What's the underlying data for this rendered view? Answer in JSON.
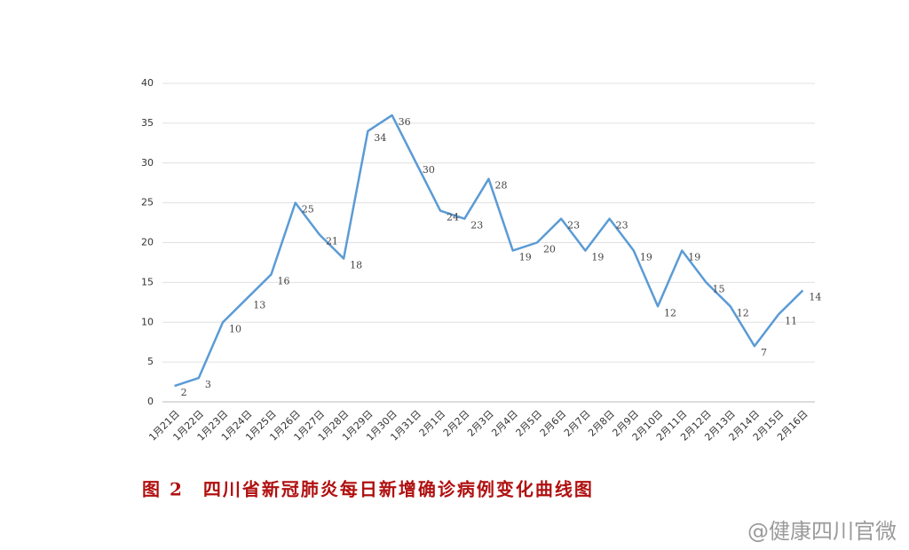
{
  "chart_data": {
    "type": "line",
    "title": "图 2　四川省新冠肺炎每日新增确诊病例变化曲线图",
    "watermark": "@健康四川官微",
    "categories": [
      "1月21日",
      "1月22日",
      "1月23日",
      "1月24日",
      "1月25日",
      "1月26日",
      "1月27日",
      "1月28日",
      "1月29日",
      "1月30日",
      "1月31日",
      "2月1日",
      "2月2日",
      "2月3日",
      "2月4日",
      "2月5日",
      "2月6日",
      "2月7日",
      "2月8日",
      "2月9日",
      "2月10日",
      "2月11日",
      "2月12日",
      "2月13日",
      "2月14日",
      "2月15日",
      "2月16日"
    ],
    "values": [
      2,
      3,
      10,
      13,
      16,
      25,
      21,
      18,
      34,
      36,
      30,
      24,
      23,
      28,
      19,
      20,
      23,
      19,
      23,
      19,
      12,
      19,
      15,
      12,
      7,
      11,
      14
    ],
    "color": "#5b9bd5",
    "ylim": [
      0,
      40
    ],
    "yticks": [
      0,
      5,
      10,
      15,
      20,
      25,
      30,
      35,
      40
    ],
    "grid": true
  }
}
